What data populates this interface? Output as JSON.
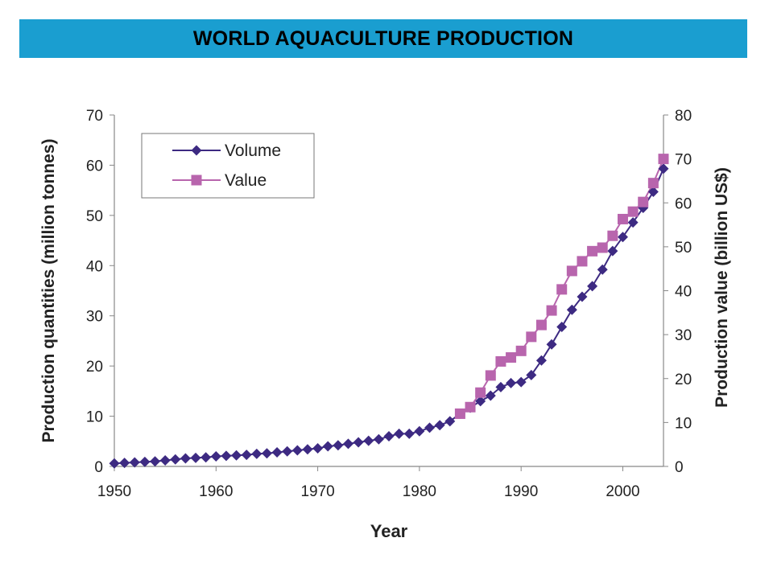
{
  "theme": {
    "banner_color": "#1a9ed0",
    "title_color": "#000000",
    "volume_color": "#3d2a82",
    "value_color": "#b865ad",
    "axis_color": "#888888"
  },
  "chart_data": {
    "type": "line",
    "title": "WORLD AQUACULTURE PRODUCTION",
    "xlabel": "Year",
    "ylabel_left": "Production quantities (million  tonnes)",
    "ylabel_right": "Production value (billion US$)",
    "xlim": [
      1950,
      2004
    ],
    "xticks": [
      1950,
      1960,
      1970,
      1980,
      1990,
      2000
    ],
    "ylim_left": [
      0,
      70
    ],
    "yticks_left": [
      0,
      10,
      20,
      30,
      40,
      50,
      60,
      70
    ],
    "ylim_right": [
      0,
      80
    ],
    "yticks_right": [
      0,
      10,
      20,
      30,
      40,
      50,
      60,
      70,
      80
    ],
    "grid": false,
    "legend": "top-left",
    "series": [
      {
        "name": "Volume",
        "axis": "left",
        "marker": "diamond",
        "x": [
          1950,
          1951,
          1952,
          1953,
          1954,
          1955,
          1956,
          1957,
          1958,
          1959,
          1960,
          1961,
          1962,
          1963,
          1964,
          1965,
          1966,
          1967,
          1968,
          1969,
          1970,
          1971,
          1972,
          1973,
          1974,
          1975,
          1976,
          1977,
          1978,
          1979,
          1980,
          1981,
          1982,
          1983,
          1984,
          1985,
          1986,
          1987,
          1988,
          1989,
          1990,
          1991,
          1992,
          1993,
          1994,
          1995,
          1996,
          1997,
          1998,
          1999,
          2000,
          2001,
          2002,
          2003,
          2004
        ],
        "values": [
          0.6,
          0.7,
          0.8,
          0.9,
          1.0,
          1.2,
          1.4,
          1.6,
          1.7,
          1.8,
          2.0,
          2.1,
          2.2,
          2.3,
          2.5,
          2.6,
          2.8,
          3.0,
          3.2,
          3.4,
          3.6,
          4.0,
          4.2,
          4.5,
          4.8,
          5.1,
          5.4,
          6.0,
          6.5,
          6.5,
          7.0,
          7.7,
          8.2,
          9.0,
          10.5,
          11.7,
          13.0,
          14.1,
          15.8,
          16.6,
          16.8,
          18.2,
          21.1,
          24.3,
          27.8,
          31.2,
          33.8,
          35.9,
          39.2,
          42.9,
          45.7,
          48.6,
          51.5,
          54.7,
          59.3
        ]
      },
      {
        "name": "Value",
        "axis": "right",
        "marker": "square",
        "x": [
          1984,
          1985,
          1986,
          1987,
          1988,
          1989,
          1990,
          1991,
          1992,
          1993,
          1994,
          1995,
          1996,
          1997,
          1998,
          1999,
          2000,
          2001,
          2002,
          2003,
          2004
        ],
        "values": [
          12.0,
          13.5,
          16.8,
          20.7,
          23.9,
          24.8,
          26.3,
          29.5,
          32.2,
          35.5,
          40.3,
          44.5,
          46.7,
          49.0,
          49.8,
          52.5,
          56.3,
          58.0,
          60.2,
          64.5,
          70.0
        ]
      }
    ]
  }
}
